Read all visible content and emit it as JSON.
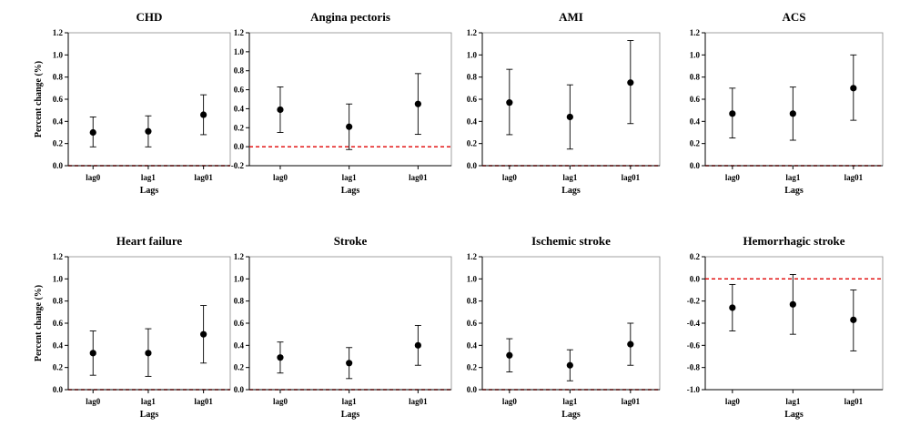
{
  "chart_data": [
    {
      "type": "errorbar",
      "title": "CHD",
      "xlabel": "Lags",
      "ylabel": "Percent change (%)",
      "categories": [
        "lag0",
        "lag1",
        "lag01"
      ],
      "ylim": [
        0.0,
        1.2
      ],
      "yticks": [
        "0.0",
        "0.2",
        "0.4",
        "0.6",
        "0.8",
        "1.0",
        "1.2"
      ],
      "reference_line": 0.0,
      "points": [
        {
          "x": "lag0",
          "estimate": 0.3,
          "lower": 0.17,
          "upper": 0.44
        },
        {
          "x": "lag1",
          "estimate": 0.31,
          "lower": 0.17,
          "upper": 0.45
        },
        {
          "x": "lag01",
          "estimate": 0.46,
          "lower": 0.28,
          "upper": 0.64
        }
      ]
    },
    {
      "type": "errorbar",
      "title": "Angina pectoris",
      "xlabel": "Lags",
      "ylabel": "",
      "categories": [
        "lag0",
        "lag1",
        "lag01"
      ],
      "ylim": [
        -0.2,
        1.2
      ],
      "yticks": [
        "-0.2",
        "0.0",
        "0.2",
        "0.4",
        "0.6",
        "0.8",
        "1.0",
        "1.2"
      ],
      "reference_line": 0.0,
      "points": [
        {
          "x": "lag0",
          "estimate": 0.39,
          "lower": 0.15,
          "upper": 0.63
        },
        {
          "x": "lag1",
          "estimate": 0.21,
          "lower": -0.03,
          "upper": 0.45
        },
        {
          "x": "lag01",
          "estimate": 0.45,
          "lower": 0.13,
          "upper": 0.77
        }
      ]
    },
    {
      "type": "errorbar",
      "title": "AMI",
      "xlabel": "Lags",
      "ylabel": "",
      "categories": [
        "lag0",
        "lag1",
        "lag01"
      ],
      "ylim": [
        0.0,
        1.2
      ],
      "yticks": [
        "0.0",
        "0.2",
        "0.4",
        "0.6",
        "0.8",
        "1.0",
        "1.2"
      ],
      "reference_line": 0.0,
      "points": [
        {
          "x": "lag0",
          "estimate": 0.57,
          "lower": 0.28,
          "upper": 0.87
        },
        {
          "x": "lag1",
          "estimate": 0.44,
          "lower": 0.15,
          "upper": 0.73
        },
        {
          "x": "lag01",
          "estimate": 0.75,
          "lower": 0.38,
          "upper": 1.13
        }
      ]
    },
    {
      "type": "errorbar",
      "title": "ACS",
      "xlabel": "Lags",
      "ylabel": "",
      "categories": [
        "lag0",
        "lag1",
        "lag01"
      ],
      "ylim": [
        0.0,
        1.2
      ],
      "yticks": [
        "0.0",
        "0.2",
        "0.4",
        "0.6",
        "0.8",
        "1.0",
        "1.2"
      ],
      "reference_line": 0.0,
      "points": [
        {
          "x": "lag0",
          "estimate": 0.47,
          "lower": 0.25,
          "upper": 0.7
        },
        {
          "x": "lag1",
          "estimate": 0.47,
          "lower": 0.23,
          "upper": 0.71
        },
        {
          "x": "lag01",
          "estimate": 0.7,
          "lower": 0.41,
          "upper": 1.0
        }
      ]
    },
    {
      "type": "errorbar",
      "title": "Heart failure",
      "xlabel": "Lags",
      "ylabel": "Percent change (%)",
      "categories": [
        "lag0",
        "lag1",
        "lag01"
      ],
      "ylim": [
        0.0,
        1.2
      ],
      "yticks": [
        "0.0",
        "0.2",
        "0.4",
        "0.6",
        "0.8",
        "1.0",
        "1.2"
      ],
      "reference_line": 0.0,
      "points": [
        {
          "x": "lag0",
          "estimate": 0.33,
          "lower": 0.13,
          "upper": 0.53
        },
        {
          "x": "lag1",
          "estimate": 0.33,
          "lower": 0.12,
          "upper": 0.55
        },
        {
          "x": "lag01",
          "estimate": 0.5,
          "lower": 0.24,
          "upper": 0.76
        }
      ]
    },
    {
      "type": "errorbar",
      "title": "Stroke",
      "xlabel": "Lags",
      "ylabel": "",
      "categories": [
        "lag0",
        "lag1",
        "lag01"
      ],
      "ylim": [
        0.0,
        1.2
      ],
      "yticks": [
        "0.0",
        "0.2",
        "0.4",
        "0.6",
        "0.8",
        "1.0",
        "1.2"
      ],
      "reference_line": 0.0,
      "points": [
        {
          "x": "lag0",
          "estimate": 0.29,
          "lower": 0.15,
          "upper": 0.43
        },
        {
          "x": "lag1",
          "estimate": 0.24,
          "lower": 0.1,
          "upper": 0.38
        },
        {
          "x": "lag01",
          "estimate": 0.4,
          "lower": 0.22,
          "upper": 0.58
        }
      ]
    },
    {
      "type": "errorbar",
      "title": "Ischemic stroke",
      "xlabel": "Lags",
      "ylabel": "",
      "categories": [
        "lag0",
        "lag1",
        "lag01"
      ],
      "ylim": [
        0.0,
        1.2
      ],
      "yticks": [
        "0.0",
        "0.2",
        "0.4",
        "0.6",
        "0.8",
        "1.0",
        "1.2"
      ],
      "reference_line": 0.0,
      "points": [
        {
          "x": "lag0",
          "estimate": 0.31,
          "lower": 0.16,
          "upper": 0.46
        },
        {
          "x": "lag1",
          "estimate": 0.22,
          "lower": 0.08,
          "upper": 0.36
        },
        {
          "x": "lag01",
          "estimate": 0.41,
          "lower": 0.22,
          "upper": 0.6
        }
      ]
    },
    {
      "type": "errorbar",
      "title": "Hemorrhagic stroke",
      "xlabel": "Lags",
      "ylabel": "",
      "categories": [
        "lag0",
        "lag1",
        "lag01"
      ],
      "ylim": [
        -1.0,
        0.2
      ],
      "yticks": [
        "-1.0",
        "-0.8",
        "-0.6",
        "-0.4",
        "-0.2",
        "0.0",
        "0.2"
      ],
      "reference_line": 0.0,
      "points": [
        {
          "x": "lag0",
          "estimate": -0.26,
          "lower": -0.47,
          "upper": -0.05
        },
        {
          "x": "lag1",
          "estimate": -0.23,
          "lower": -0.5,
          "upper": 0.04
        },
        {
          "x": "lag01",
          "estimate": -0.37,
          "lower": -0.65,
          "upper": -0.1
        }
      ]
    }
  ],
  "colors": {
    "point": "#000000",
    "errorbar": "#000000",
    "axis": "#000000",
    "reference_line": "#e00000"
  }
}
